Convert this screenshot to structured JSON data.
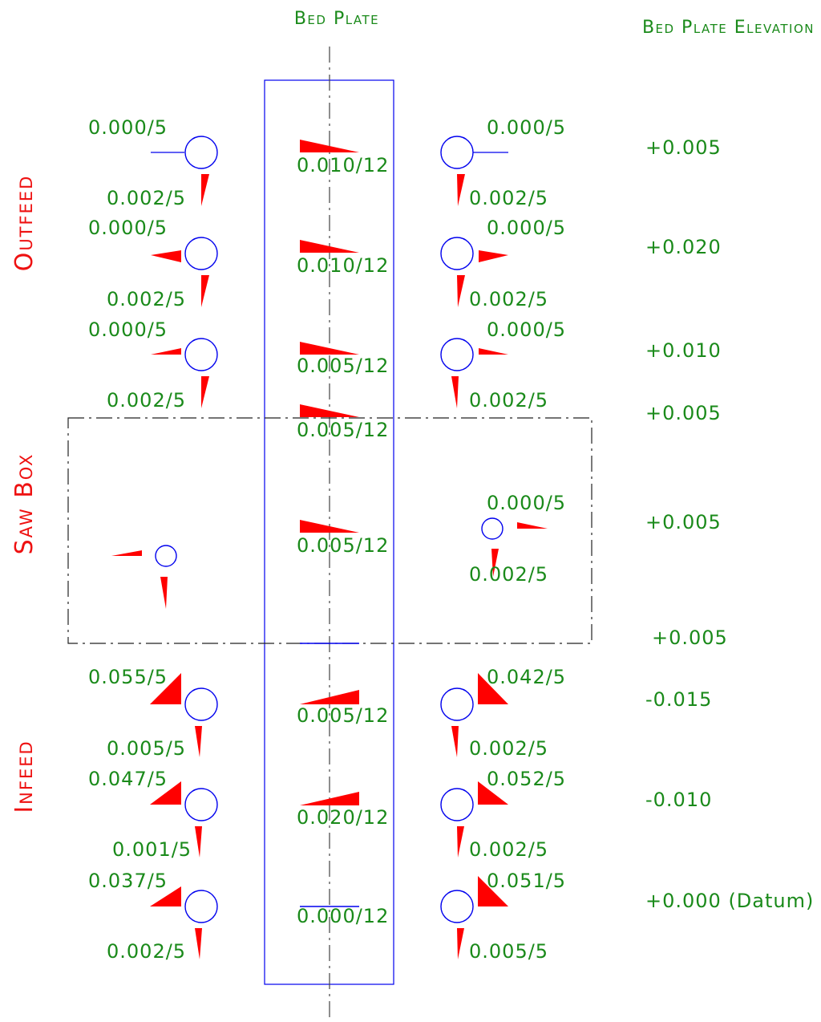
{
  "headers": {
    "bed_plate": "Bed Plate",
    "bed_plate_elevation": "Bed Plate Elevation"
  },
  "sections": {
    "outfeed": "Outfeed",
    "saw_box": "Saw Box",
    "infeed": "Infeed"
  },
  "bed_plate_readings": [
    "0.010/12",
    "0.010/12",
    "0.005/12",
    "0.005/12",
    "0.005/12",
    "0.005/12",
    "0.020/12",
    "0.000/12"
  ],
  "elevations": [
    "+0.005",
    "+0.020",
    "+0.010",
    "+0.005",
    "+0.005",
    "+0.005",
    "-0.015",
    "-0.010",
    "+0.000 (Datum)"
  ],
  "left_rollers": {
    "outfeed": [
      {
        "top": "0.000/5",
        "bottom": "0.002/5"
      },
      {
        "top": "0.000/5",
        "bottom": "0.002/5"
      },
      {
        "top": "0.000/5",
        "bottom": "0.002/5"
      }
    ],
    "infeed": [
      {
        "top": "0.055/5",
        "bottom": "0.005/5"
      },
      {
        "top": "0.047/5",
        "bottom": "0.001/5"
      },
      {
        "top": "0.037/5",
        "bottom": "0.002/5"
      }
    ]
  },
  "right_rollers": {
    "outfeed": [
      {
        "top": "0.000/5",
        "bottom": "0.002/5"
      },
      {
        "top": "0.000/5",
        "bottom": "0.002/5"
      },
      {
        "top": "0.000/5",
        "bottom": "0.002/5"
      }
    ],
    "saw_box": {
      "top": "0.000/5",
      "bottom": "0.002/5"
    },
    "infeed": [
      {
        "top": "0.042/5",
        "bottom": "0.002/5"
      },
      {
        "top": "0.052/5",
        "bottom": "0.002/5"
      },
      {
        "top": "0.051/5",
        "bottom": "0.005/5"
      }
    ]
  },
  "colors": {
    "text_green": "#1a8a1a",
    "section_red": "#ee1111",
    "wedge_red": "#ff0000",
    "outline_blue": "#0000ee"
  }
}
